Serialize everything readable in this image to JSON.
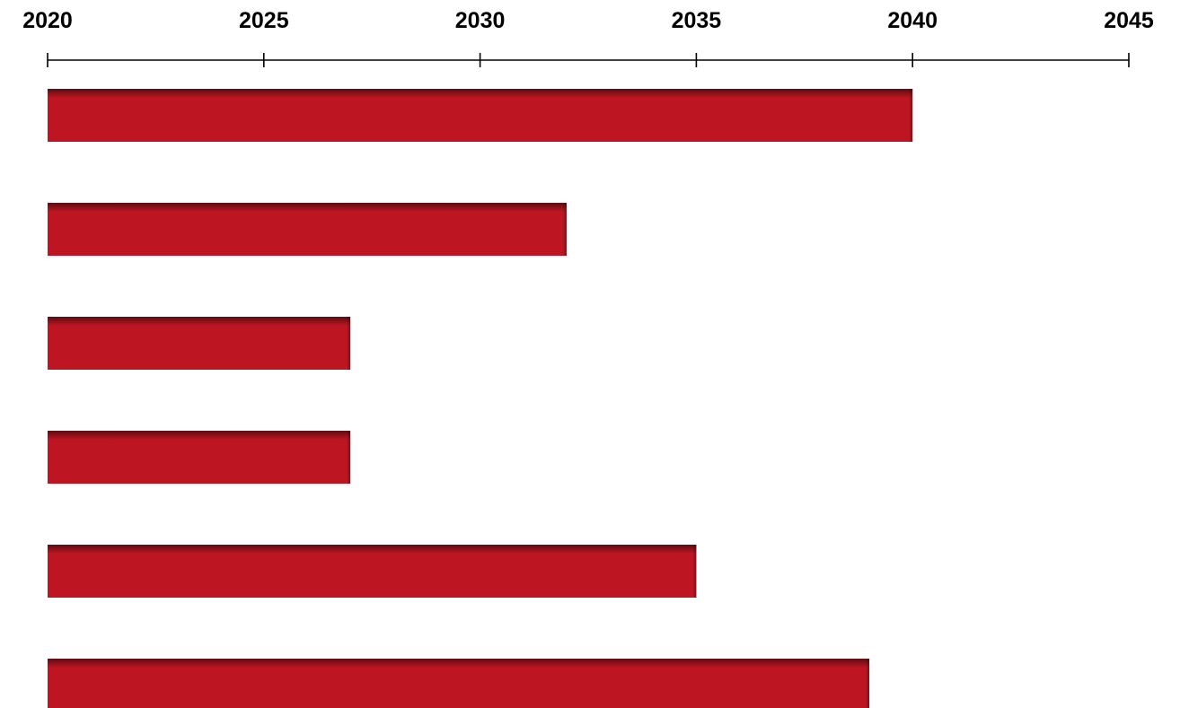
{
  "chart_data": {
    "type": "bar",
    "orientation": "horizontal",
    "axis_position": "top",
    "x_ticks": [
      "2020",
      "2025",
      "2030",
      "2035",
      "2040",
      "2045"
    ],
    "xlim": [
      2020,
      2045
    ],
    "bar_start": 2020,
    "values": [
      2040,
      2032,
      2027,
      2027,
      2035,
      2039
    ],
    "grid": false,
    "legend": "none",
    "bar_color": "#bd1622",
    "bar_shadow_color": "#5e0a10"
  }
}
